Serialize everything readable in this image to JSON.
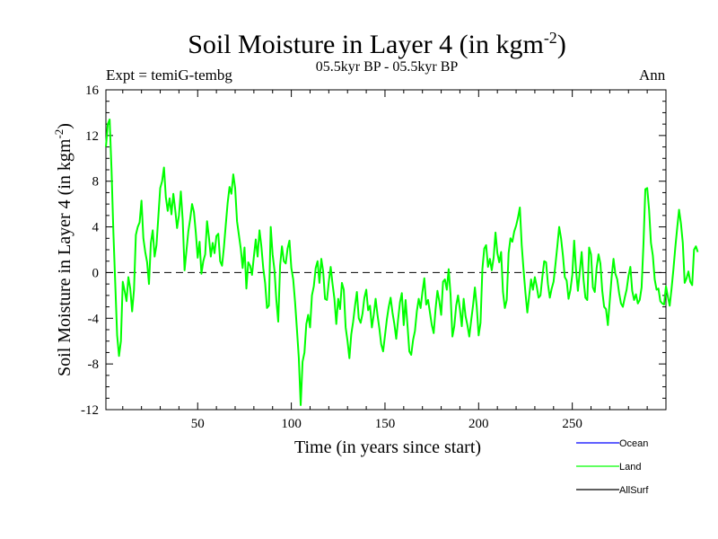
{
  "header": {
    "title": "Soil Moisture in Layer 4 (in kgm",
    "title_sup": "-2",
    "title_close": ")",
    "subtitle": "05.5kyr BP - 05.5kyr BP",
    "expt": "Expt = temiG-tembg",
    "season": "Ann"
  },
  "colors": {
    "ocean": "#0000ff",
    "land": "#00ff00",
    "allsurf": "#000000",
    "zero_line": "#000000"
  },
  "chart_data": {
    "type": "line",
    "title": "Soil Moisture in Layer 4 (in kgm-2)",
    "xlabel": "Time (in years since start)",
    "ylabel": "Soil Moisture in Layer 4 (in kgm-2)",
    "ylabel_main": "Soil Moisture in Layer 4 (in kgm",
    "ylabel_sup": "-2",
    "ylabel_close": ")",
    "xlim": [
      1,
      300
    ],
    "ylim": [
      -12,
      16
    ],
    "x_ticks": [
      50,
      100,
      150,
      200,
      250
    ],
    "x_tick_labels": [
      "50",
      "100",
      "150",
      "200",
      "250"
    ],
    "y_ticks": [
      -12,
      -8,
      -4,
      0,
      4,
      8,
      12,
      16
    ],
    "y_tick_labels": [
      "-12",
      "-8",
      "-4",
      "0",
      "4",
      "8",
      "12",
      "16"
    ],
    "zero_line": {
      "y": 0,
      "style": "dashed"
    },
    "legend": {
      "position": "bottom-right",
      "entries": [
        "Ocean",
        "Land",
        "AllSurf"
      ]
    },
    "x_start": 1,
    "x_step": 1,
    "series": [
      {
        "name": "Land",
        "values": [
          11.0,
          13.0,
          13.4,
          9.0,
          3.5,
          -1.0,
          -5.5,
          -7.3,
          -6.0,
          -0.8,
          -1.6,
          -2.5,
          -0.4,
          -1.4,
          -3.4,
          -1.5,
          3.3,
          4.0,
          4.4,
          6.3,
          3.0,
          1.8,
          0.9,
          -1.0,
          2.6,
          3.7,
          1.4,
          2.4,
          4.9,
          7.4,
          8.0,
          9.2,
          6.6,
          5.4,
          6.5,
          5.1,
          6.9,
          5.5,
          3.9,
          5.0,
          7.1,
          4.6,
          0.2,
          1.9,
          3.6,
          4.7,
          6.0,
          5.3,
          3.5,
          1.3,
          2.7,
          -0.1,
          1.0,
          1.6,
          4.5,
          3.1,
          1.4,
          2.6,
          1.7,
          3.2,
          3.4,
          1.0,
          0.6,
          2.2,
          4.2,
          6.1,
          7.5,
          6.9,
          8.6,
          7.4,
          4.5,
          3.3,
          2.1,
          0.4,
          2.2,
          -1.4,
          0.9,
          0.6,
          -0.2,
          1.4,
          2.9,
          1.4,
          3.7,
          2.3,
          0.4,
          -0.9,
          -3.1,
          -2.9,
          4.0,
          1.6,
          0.2,
          -2.4,
          -4.3,
          0.6,
          2.3,
          1.0,
          0.8,
          2.1,
          2.8,
          0.4,
          -0.6,
          -2.6,
          -5.0,
          -7.5,
          -11.6,
          -7.8,
          -7.0,
          -4.5,
          -3.7,
          -4.8,
          -2.0,
          -1.2,
          0.4,
          1.0,
          -0.9,
          1.2,
          0.1,
          -2.3,
          -2.4,
          -0.8,
          0.5,
          -1.0,
          -2.3,
          -4.5,
          -2.3,
          -3.2,
          -0.9,
          -1.5,
          -4.8,
          -6.0,
          -7.5,
          -5.4,
          -4.3,
          -2.9,
          -1.7,
          -4.0,
          -4.4,
          -3.6,
          -2.2,
          -1.5,
          -3.3,
          -2.9,
          -4.8,
          -3.7,
          -2.3,
          -3.7,
          -4.9,
          -6.3,
          -6.9,
          -5.5,
          -4.1,
          -3.0,
          -2.2,
          -3.5,
          -4.5,
          -5.8,
          -4.1,
          -2.6,
          -1.8,
          -4.6,
          -2.4,
          -4.6,
          -6.9,
          -7.2,
          -5.9,
          -5.1,
          -3.4,
          -2.3,
          -3.1,
          -1.7,
          -0.5,
          -2.8,
          -2.4,
          -3.5,
          -4.6,
          -5.3,
          -3.2,
          -1.6,
          -2.5,
          -3.7,
          -0.8,
          -0.6,
          -1.5,
          0.3,
          -1.9,
          -5.6,
          -4.7,
          -2.9,
          -2.0,
          -3.2,
          -4.7,
          -2.3,
          -3.8,
          -4.6,
          -5.6,
          -4.2,
          -2.9,
          -1.3,
          -3.0,
          -5.5,
          -4.4,
          0.3,
          2.1,
          2.4,
          0.5,
          1.2,
          0.2,
          1.3,
          3.5,
          1.7,
          0.9,
          1.8,
          -1.7,
          -3.1,
          -2.4,
          1.7,
          3.0,
          2.7,
          3.6,
          4.1,
          4.8,
          5.7,
          2.4,
          0.2,
          -1.8,
          -3.5,
          -2.0,
          -0.6,
          -1.5,
          -0.4,
          -1.2,
          -2.2,
          -2.0,
          -0.4,
          1.0,
          0.9,
          -1.0,
          -2.2,
          -1.4,
          -0.8,
          0.7,
          2.3,
          4.0,
          3.0,
          1.5,
          -0.4,
          -0.7,
          -2.3,
          -1.5,
          -0.2,
          2.8,
          0.2,
          -1.6,
          0.1,
          1.8,
          -0.6,
          -2.2,
          -2.4,
          2.2,
          1.6,
          -1.3,
          -1.7,
          0.4,
          1.6,
          0.8,
          -1.6,
          -3.0,
          -3.2,
          -4.6,
          -2.5,
          -0.4,
          1.2,
          -0.1,
          -0.6,
          -1.8,
          -2.7,
          -3.0,
          -2.2,
          -1.5,
          -0.3,
          0.5,
          -1.6,
          -2.4,
          -1.9,
          -2.7,
          -2.4,
          -1.3,
          2.5,
          7.3,
          7.4,
          5.5,
          2.6,
          1.5,
          -0.6,
          -1.5,
          -1.4,
          -2.5,
          -2.7,
          -2.8,
          -1.2,
          -2.1,
          -2.9,
          -1.4,
          0.3,
          2.2,
          3.9,
          5.5,
          4.3,
          2.6,
          -0.9,
          -0.5,
          0.1,
          -0.8,
          -1.1,
          2.0,
          2.3,
          1.8
        ]
      }
    ]
  }
}
